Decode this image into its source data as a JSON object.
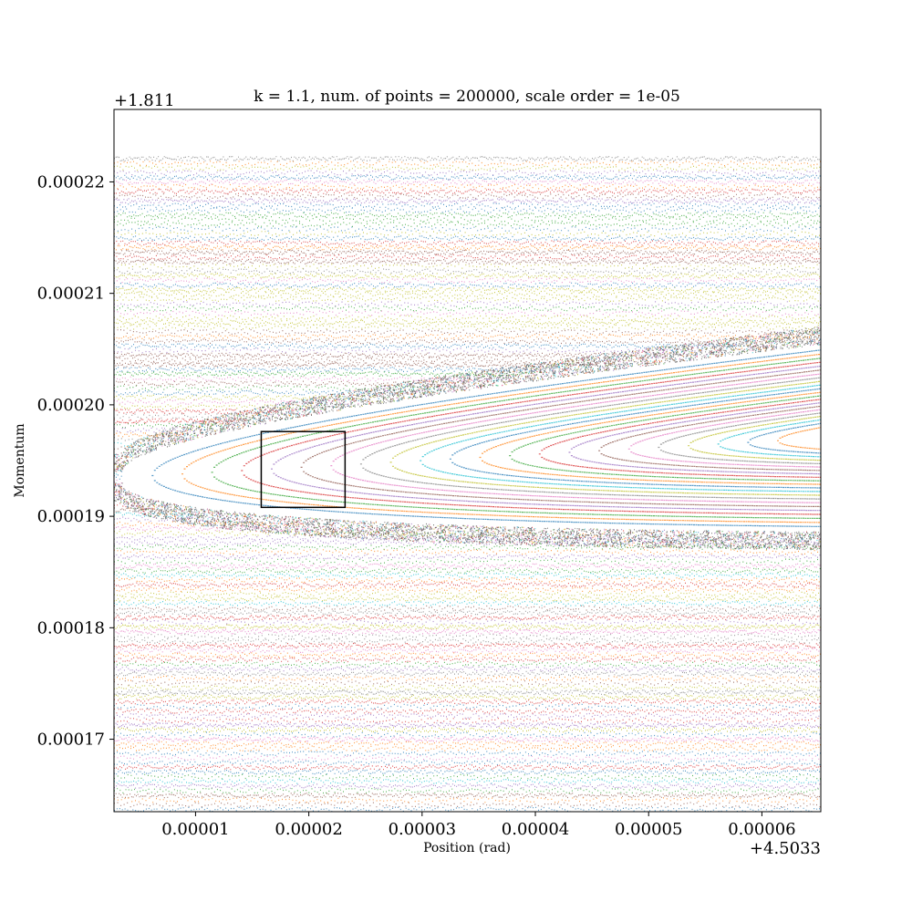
{
  "chart_data": {
    "type": "scatter",
    "title": "k = 1.1, num. of  points = 200000, scale order = 1e-05",
    "xlabel": "Position (rad)",
    "ylabel": "Momentum",
    "x_offset_label": "+4.5033",
    "y_offset_label": "+1.811",
    "xlim": [
      2.8e-06,
      6.52e-05
    ],
    "ylim": [
      0.0001635,
      0.0002265
    ],
    "x_ticks": [
      {
        "value": 1e-05,
        "label": "0.00001"
      },
      {
        "value": 2e-05,
        "label": "0.00002"
      },
      {
        "value": 3e-05,
        "label": "0.00003"
      },
      {
        "value": 4e-05,
        "label": "0.00004"
      },
      {
        "value": 5e-05,
        "label": "0.00005"
      },
      {
        "value": 6e-05,
        "label": "0.00006"
      }
    ],
    "y_ticks": [
      {
        "value": 0.00017,
        "label": "0.00017"
      },
      {
        "value": 0.00018,
        "label": "0.00018"
      },
      {
        "value": 0.00019,
        "label": "0.00019"
      },
      {
        "value": 0.0002,
        "label": "0.00020"
      },
      {
        "value": 0.00021,
        "label": "0.00021"
      },
      {
        "value": 0.00022,
        "label": "0.00022"
      }
    ],
    "island": {
      "tip_x": 3.5e-06,
      "center_y": 0.0001935,
      "right_x": 6.52e-05,
      "right_center_y": 0.000197,
      "separatrix_top_y_at_right": 0.0002048,
      "separatrix_bottom_y_at_right": 0.000189
    },
    "zoom_box": {
      "x": [
        1.58e-05,
        2.32e-05
      ],
      "y": [
        0.0001908,
        0.0001976
      ]
    },
    "grid": false,
    "legend": "none",
    "palette": [
      "#1f77b4",
      "#ff7f0e",
      "#2ca02c",
      "#d62728",
      "#9467bd",
      "#8c564b",
      "#e377c2",
      "#7f7f7f",
      "#bcbd22",
      "#17becf"
    ]
  }
}
